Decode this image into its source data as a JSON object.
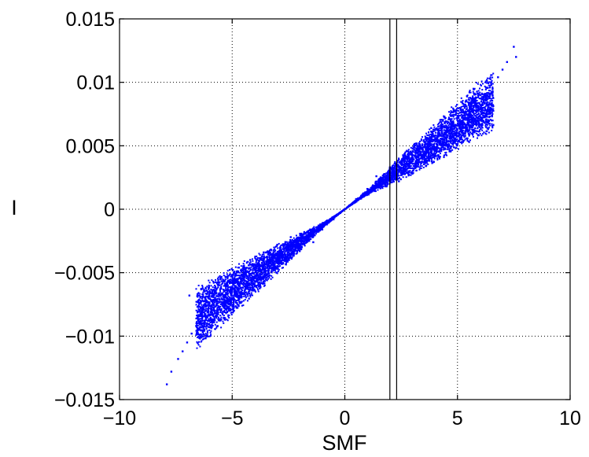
{
  "chart_data": {
    "type": "scatter",
    "title": "",
    "xlabel": "SMF",
    "ylabel": "I",
    "xlim": [
      -10,
      10
    ],
    "ylim": [
      -0.015,
      0.015
    ],
    "x_ticks": [
      -10,
      -5,
      0,
      5,
      10
    ],
    "x_tick_labels": [
      "−10",
      "−5",
      "0",
      "5",
      "10"
    ],
    "y_ticks": [
      -0.015,
      -0.01,
      -0.005,
      0,
      0.005,
      0.01,
      0.015
    ],
    "y_tick_labels": [
      "−0.015",
      "−0.01",
      "−0.005",
      "0",
      "0.005",
      "0.01",
      "0.015"
    ],
    "grid": true,
    "marker_color": "#0000ff",
    "vertical_lines_x": [
      2.0,
      2.3
    ],
    "series": [
      {
        "points": [
          [
            -7.9,
            -0.0138
          ],
          [
            -7.7,
            -0.0128
          ],
          [
            -7.4,
            -0.0118
          ],
          [
            -7.2,
            -0.0112
          ],
          [
            -7.0,
            -0.0105
          ],
          [
            -6.9,
            -0.0068
          ],
          [
            -6.8,
            -0.0098
          ],
          [
            -6.6,
            -0.0092
          ],
          [
            -6.4,
            -0.0089
          ],
          [
            -6.3,
            -0.0078
          ],
          [
            -6.2,
            -0.0084
          ],
          [
            -6.0,
            -0.0074
          ],
          [
            -5.8,
            -0.008
          ],
          [
            -5.7,
            -0.0066
          ],
          [
            -5.5,
            -0.0062
          ],
          [
            -5.3,
            -0.0072
          ],
          [
            -5.2,
            -0.0053
          ],
          [
            -5.0,
            -0.0058
          ],
          [
            -4.8,
            -0.0066
          ],
          [
            -4.7,
            -0.0046
          ],
          [
            -4.5,
            -0.0052
          ],
          [
            -4.3,
            -0.006
          ],
          [
            -4.2,
            -0.004
          ],
          [
            -4.0,
            -0.0046
          ],
          [
            -3.8,
            -0.0054
          ],
          [
            -3.6,
            -0.0034
          ],
          [
            -3.4,
            -0.004
          ],
          [
            -3.2,
            -0.0047
          ],
          [
            -3.0,
            -0.0028
          ],
          [
            -2.8,
            -0.0034
          ],
          [
            -2.6,
            -0.004
          ],
          [
            -2.4,
            -0.0022
          ],
          [
            -2.2,
            -0.0028
          ],
          [
            -2.0,
            -0.0033
          ],
          [
            -1.8,
            -0.0018
          ],
          [
            -1.6,
            -0.0022
          ],
          [
            -1.4,
            -0.0026
          ],
          [
            -1.2,
            -0.0014
          ],
          [
            -1.0,
            -0.0016
          ],
          [
            -0.8,
            -0.0012
          ],
          [
            -0.5,
            -0.0008
          ],
          [
            -0.2,
            -0.0003
          ],
          [
            0.0,
            0.0
          ],
          [
            0.2,
            0.0003
          ],
          [
            0.5,
            0.0008
          ],
          [
            0.8,
            0.0012
          ],
          [
            1.0,
            0.0016
          ],
          [
            1.2,
            0.0014
          ],
          [
            1.4,
            0.0026
          ],
          [
            1.6,
            0.0022
          ],
          [
            1.8,
            0.0018
          ],
          [
            2.0,
            0.0033
          ],
          [
            2.2,
            0.0028
          ],
          [
            2.4,
            0.0022
          ],
          [
            2.6,
            0.004
          ],
          [
            2.8,
            0.0034
          ],
          [
            3.0,
            0.0028
          ],
          [
            3.2,
            0.0047
          ],
          [
            3.4,
            0.004
          ],
          [
            3.6,
            0.0034
          ],
          [
            3.8,
            0.0054
          ],
          [
            4.0,
            0.0046
          ],
          [
            4.2,
            0.004
          ],
          [
            4.3,
            0.006
          ],
          [
            4.5,
            0.0052
          ],
          [
            4.7,
            0.0046
          ],
          [
            4.8,
            0.0066
          ],
          [
            5.0,
            0.0058
          ],
          [
            5.2,
            0.0053
          ],
          [
            5.3,
            0.0072
          ],
          [
            5.5,
            0.0062
          ],
          [
            5.7,
            0.0066
          ],
          [
            5.8,
            0.0082
          ],
          [
            6.0,
            0.0074
          ],
          [
            6.2,
            0.009
          ],
          [
            6.3,
            0.0078
          ],
          [
            6.5,
            0.0098
          ],
          [
            6.8,
            0.0104
          ],
          [
            7.0,
            0.011
          ],
          [
            7.2,
            0.0116
          ],
          [
            7.5,
            0.0128
          ],
          [
            7.6,
            0.012
          ]
        ]
      }
    ]
  }
}
